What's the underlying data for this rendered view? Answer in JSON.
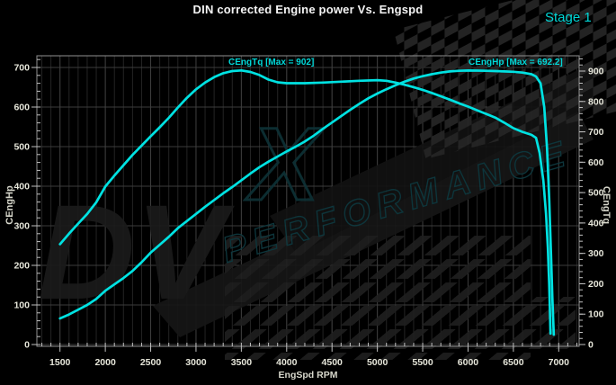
{
  "header": {
    "title": "DIN corrected Engine power Vs. Engspd",
    "stage_label": "Stage 1"
  },
  "watermark": {
    "logo_text": "DV",
    "logo_x_text": "X",
    "brand_text": "PERFORMANCE"
  },
  "chart_data": {
    "type": "line",
    "title": "DIN corrected Engine power Vs. Engspd",
    "stage": "Stage 1",
    "grid": true,
    "legend_position": "none",
    "x_axis": {
      "label": "EngSpd RPM",
      "range": [
        1235,
        7225
      ],
      "major_ticks": [
        1500,
        2000,
        2500,
        3000,
        3500,
        4000,
        4500,
        5000,
        5500,
        6000,
        6500,
        7000
      ],
      "minor_step": 100
    },
    "left_axis": {
      "label": "CEngHp",
      "min": 0,
      "max": 700,
      "major_ticks": [
        0,
        100,
        200,
        300,
        400,
        500,
        600,
        700
      ],
      "minor_step": 20
    },
    "right_axis": {
      "label": "CEngTq",
      "min": 0,
      "max": 900,
      "major_ticks": [
        0,
        100,
        200,
        300,
        400,
        500,
        600,
        700,
        800,
        900
      ],
      "minor_step": 20
    },
    "annotations": [
      {
        "text": "CEngTq [Max = 902]",
        "series": "CEngTq"
      },
      {
        "text": "CEngHp [Max = 692.2]",
        "series": "CEngHp"
      }
    ],
    "series": [
      {
        "name": "CEngTq",
        "axis": "right",
        "max_value": 902,
        "points": [
          [
            1500,
            330
          ],
          [
            1600,
            365
          ],
          [
            1700,
            398
          ],
          [
            1800,
            430
          ],
          [
            1900,
            468
          ],
          [
            2000,
            520
          ],
          [
            2100,
            556
          ],
          [
            2200,
            590
          ],
          [
            2300,
            624
          ],
          [
            2400,
            655
          ],
          [
            2500,
            685
          ],
          [
            2600,
            715
          ],
          [
            2700,
            746
          ],
          [
            2800,
            780
          ],
          [
            2900,
            812
          ],
          [
            3000,
            840
          ],
          [
            3100,
            862
          ],
          [
            3200,
            880
          ],
          [
            3300,
            893
          ],
          [
            3400,
            900
          ],
          [
            3500,
            902
          ],
          [
            3600,
            897
          ],
          [
            3700,
            887
          ],
          [
            3800,
            872
          ],
          [
            3900,
            863
          ],
          [
            4000,
            860
          ],
          [
            4200,
            860
          ],
          [
            4400,
            862
          ],
          [
            4600,
            865
          ],
          [
            4800,
            868
          ],
          [
            5000,
            870
          ],
          [
            5100,
            868
          ],
          [
            5200,
            862
          ],
          [
            5300,
            855
          ],
          [
            5400,
            847
          ],
          [
            5500,
            838
          ],
          [
            5600,
            828
          ],
          [
            5700,
            817
          ],
          [
            5800,
            806
          ],
          [
            5900,
            794
          ],
          [
            6000,
            783
          ],
          [
            6100,
            771
          ],
          [
            6200,
            759
          ],
          [
            6300,
            747
          ],
          [
            6400,
            730
          ],
          [
            6500,
            712
          ],
          [
            6600,
            700
          ],
          [
            6700,
            690
          ],
          [
            6750,
            680
          ],
          [
            6790,
            630
          ],
          [
            6830,
            540
          ],
          [
            6860,
            430
          ],
          [
            6880,
            320
          ],
          [
            6895,
            200
          ],
          [
            6905,
            90
          ],
          [
            6910,
            36
          ]
        ]
      },
      {
        "name": "CEngHp",
        "axis": "left",
        "max_value": 692.2,
        "points": [
          [
            1500,
            66
          ],
          [
            1600,
            76
          ],
          [
            1700,
            88
          ],
          [
            1800,
            100
          ],
          [
            1900,
            115
          ],
          [
            2000,
            136
          ],
          [
            2100,
            152
          ],
          [
            2200,
            168
          ],
          [
            2300,
            186
          ],
          [
            2400,
            208
          ],
          [
            2500,
            232
          ],
          [
            2600,
            252
          ],
          [
            2700,
            272
          ],
          [
            2800,
            294
          ],
          [
            2900,
            312
          ],
          [
            3000,
            330
          ],
          [
            3100,
            348
          ],
          [
            3200,
            365
          ],
          [
            3300,
            382
          ],
          [
            3400,
            398
          ],
          [
            3500,
            415
          ],
          [
            3600,
            432
          ],
          [
            3700,
            448
          ],
          [
            3800,
            462
          ],
          [
            3900,
            475
          ],
          [
            4000,
            488
          ],
          [
            4100,
            500
          ],
          [
            4200,
            513
          ],
          [
            4300,
            528
          ],
          [
            4400,
            545
          ],
          [
            4500,
            561
          ],
          [
            4600,
            577
          ],
          [
            4700,
            593
          ],
          [
            4800,
            608
          ],
          [
            4900,
            622
          ],
          [
            5000,
            634
          ],
          [
            5100,
            645
          ],
          [
            5200,
            655
          ],
          [
            5300,
            664
          ],
          [
            5400,
            672
          ],
          [
            5500,
            678
          ],
          [
            5600,
            683
          ],
          [
            5700,
            687
          ],
          [
            5800,
            690
          ],
          [
            5900,
            691.5
          ],
          [
            6000,
            692.2
          ],
          [
            6100,
            692
          ],
          [
            6200,
            691.5
          ],
          [
            6300,
            691
          ],
          [
            6400,
            690
          ],
          [
            6500,
            689
          ],
          [
            6600,
            687
          ],
          [
            6700,
            683
          ],
          [
            6750,
            677
          ],
          [
            6800,
            660
          ],
          [
            6840,
            600
          ],
          [
            6870,
            500
          ],
          [
            6895,
            370
          ],
          [
            6915,
            230
          ],
          [
            6930,
            120
          ],
          [
            6945,
            25
          ]
        ]
      }
    ],
    "colors": {
      "background": "#000000",
      "curve": "#00e2e2",
      "grid_minor": "#242424",
      "grid_major": "#3d3d3d",
      "spine": "#8f8f8f",
      "tick_mark": "#c0c0c0",
      "tick_label": "#e6e6da",
      "accent": "#00d8d8"
    }
  }
}
